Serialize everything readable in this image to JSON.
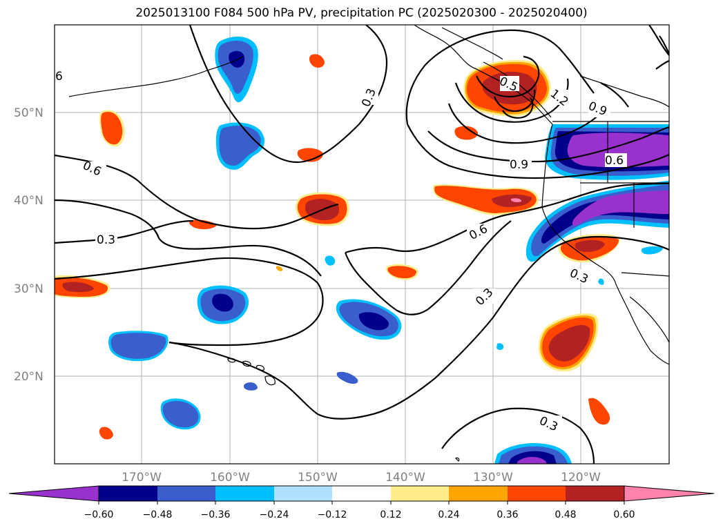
{
  "title": "2025013100 F084 500 hPa PV, precipitation PC (2025020300 - 2025020400)",
  "map": {
    "lat_ticks": [
      "50°N",
      "40°N",
      "30°N",
      "20°N"
    ],
    "lon_ticks": [
      "170°W",
      "160°W",
      "150°W",
      "140°W",
      "130°W",
      "120°W"
    ],
    "contour_labels": [
      "6",
      "0.3",
      "0.6",
      "0.3",
      "0.5",
      "1.2",
      "0.9",
      "0.9",
      "0.6",
      "0.6",
      "0.3",
      "0.3",
      "0.3"
    ],
    "grid": true,
    "contour_color": "#000000"
  },
  "colorbar": {
    "colors": [
      "#9932cc",
      "#00008b",
      "#3a5fcd",
      "#00bfff",
      "#b0e2ff",
      "#ffffff",
      "#ffec8b",
      "#ffa500",
      "#ff4500",
      "#b22222",
      "#ff82ab"
    ],
    "tick_labels": [
      "−0.60",
      "−0.48",
      "−0.36",
      "−0.24",
      "−0.12",
      "0.12",
      "0.24",
      "0.36",
      "0.48",
      "0.60"
    ]
  }
}
